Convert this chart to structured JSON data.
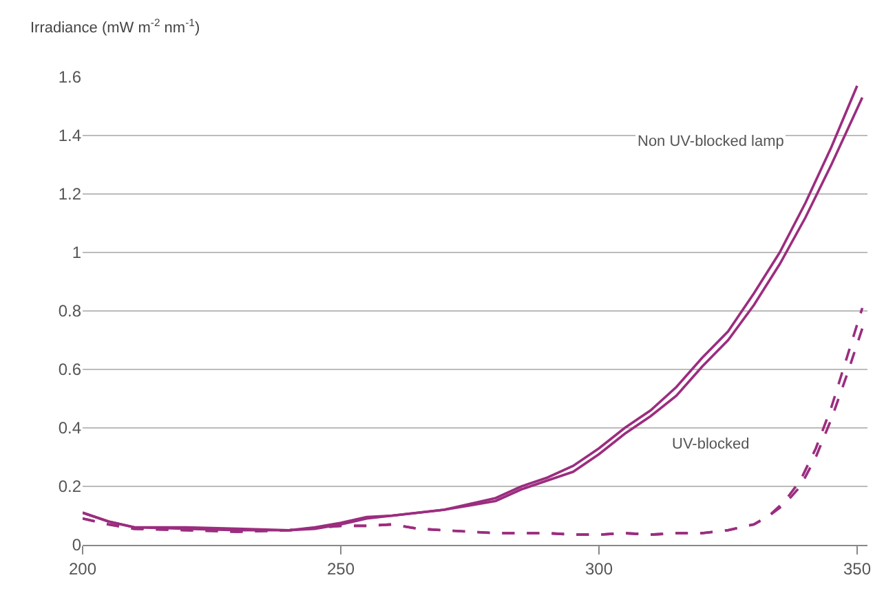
{
  "chart_data": {
    "type": "line",
    "ylabel": "Irradiance (mW m$^{-2}$ nm$^{-1}$)",
    "annotations": [
      "Non UV-blocked lamp",
      "UV-blocked"
    ],
    "xlim": [
      200,
      352
    ],
    "xticks": [
      200,
      250,
      300,
      350
    ],
    "ylim": [
      0,
      1.6
    ],
    "yticks": [
      0,
      0.2,
      0.4,
      0.6,
      0.8,
      1,
      1.2,
      1.4,
      1.6
    ],
    "grid": "y",
    "marker": "none",
    "series": [
      {
        "color": "#9b2d7f",
        "line_style": "solid",
        "x": [
          200,
          205,
          210,
          220,
          230,
          240,
          245,
          250,
          255,
          260,
          265,
          270,
          275,
          280,
          285,
          290,
          295,
          300,
          305,
          310,
          315,
          320,
          325,
          330,
          335,
          340,
          345,
          350
        ],
        "values": [
          0.11,
          0.08,
          0.06,
          0.06,
          0.055,
          0.05,
          0.06,
          0.075,
          0.095,
          0.1,
          0.11,
          0.12,
          0.14,
          0.16,
          0.2,
          0.23,
          0.27,
          0.33,
          0.4,
          0.46,
          0.54,
          0.64,
          0.73,
          0.86,
          1.0,
          1.17,
          1.36,
          1.57
        ]
      },
      {
        "color": "#9b2d7f",
        "line_style": "solid",
        "x": [
          200,
          205,
          210,
          220,
          230,
          240,
          245,
          250,
          255,
          260,
          265,
          270,
          275,
          280,
          285,
          290,
          295,
          300,
          305,
          310,
          315,
          320,
          325,
          330,
          335,
          340,
          345,
          351
        ],
        "values": [
          0.11,
          0.08,
          0.06,
          0.055,
          0.05,
          0.05,
          0.055,
          0.07,
          0.09,
          0.1,
          0.11,
          0.12,
          0.135,
          0.15,
          0.19,
          0.22,
          0.25,
          0.31,
          0.38,
          0.44,
          0.51,
          0.61,
          0.7,
          0.82,
          0.96,
          1.12,
          1.3,
          1.53
        ]
      },
      {
        "color": "#9b2d7f",
        "line_style": "dashed",
        "x": [
          200,
          205,
          210,
          220,
          230,
          240,
          250,
          255,
          260,
          265,
          270,
          275,
          280,
          285,
          290,
          295,
          300,
          305,
          310,
          315,
          320,
          325,
          330,
          333,
          336,
          339,
          342,
          345,
          348,
          351
        ],
        "values": [
          0.09,
          0.07,
          0.055,
          0.05,
          0.045,
          0.05,
          0.065,
          0.065,
          0.07,
          0.055,
          0.05,
          0.045,
          0.04,
          0.04,
          0.04,
          0.035,
          0.035,
          0.04,
          0.035,
          0.04,
          0.04,
          0.05,
          0.07,
          0.1,
          0.15,
          0.22,
          0.33,
          0.47,
          0.64,
          0.81
        ]
      },
      {
        "color": "#9b2d7f",
        "line_style": "dashed",
        "x": [
          200,
          205,
          210,
          220,
          230,
          240,
          250,
          255,
          260,
          265,
          270,
          275,
          280,
          285,
          290,
          295,
          300,
          305,
          310,
          315,
          320,
          325,
          330,
          333,
          336,
          339,
          342,
          345,
          348,
          351
        ],
        "values": [
          0.09,
          0.07,
          0.055,
          0.05,
          0.045,
          0.05,
          0.065,
          0.065,
          0.07,
          0.055,
          0.05,
          0.045,
          0.04,
          0.04,
          0.04,
          0.035,
          0.035,
          0.04,
          0.035,
          0.04,
          0.04,
          0.05,
          0.07,
          0.1,
          0.14,
          0.2,
          0.3,
          0.43,
          0.58,
          0.74
        ]
      }
    ]
  }
}
